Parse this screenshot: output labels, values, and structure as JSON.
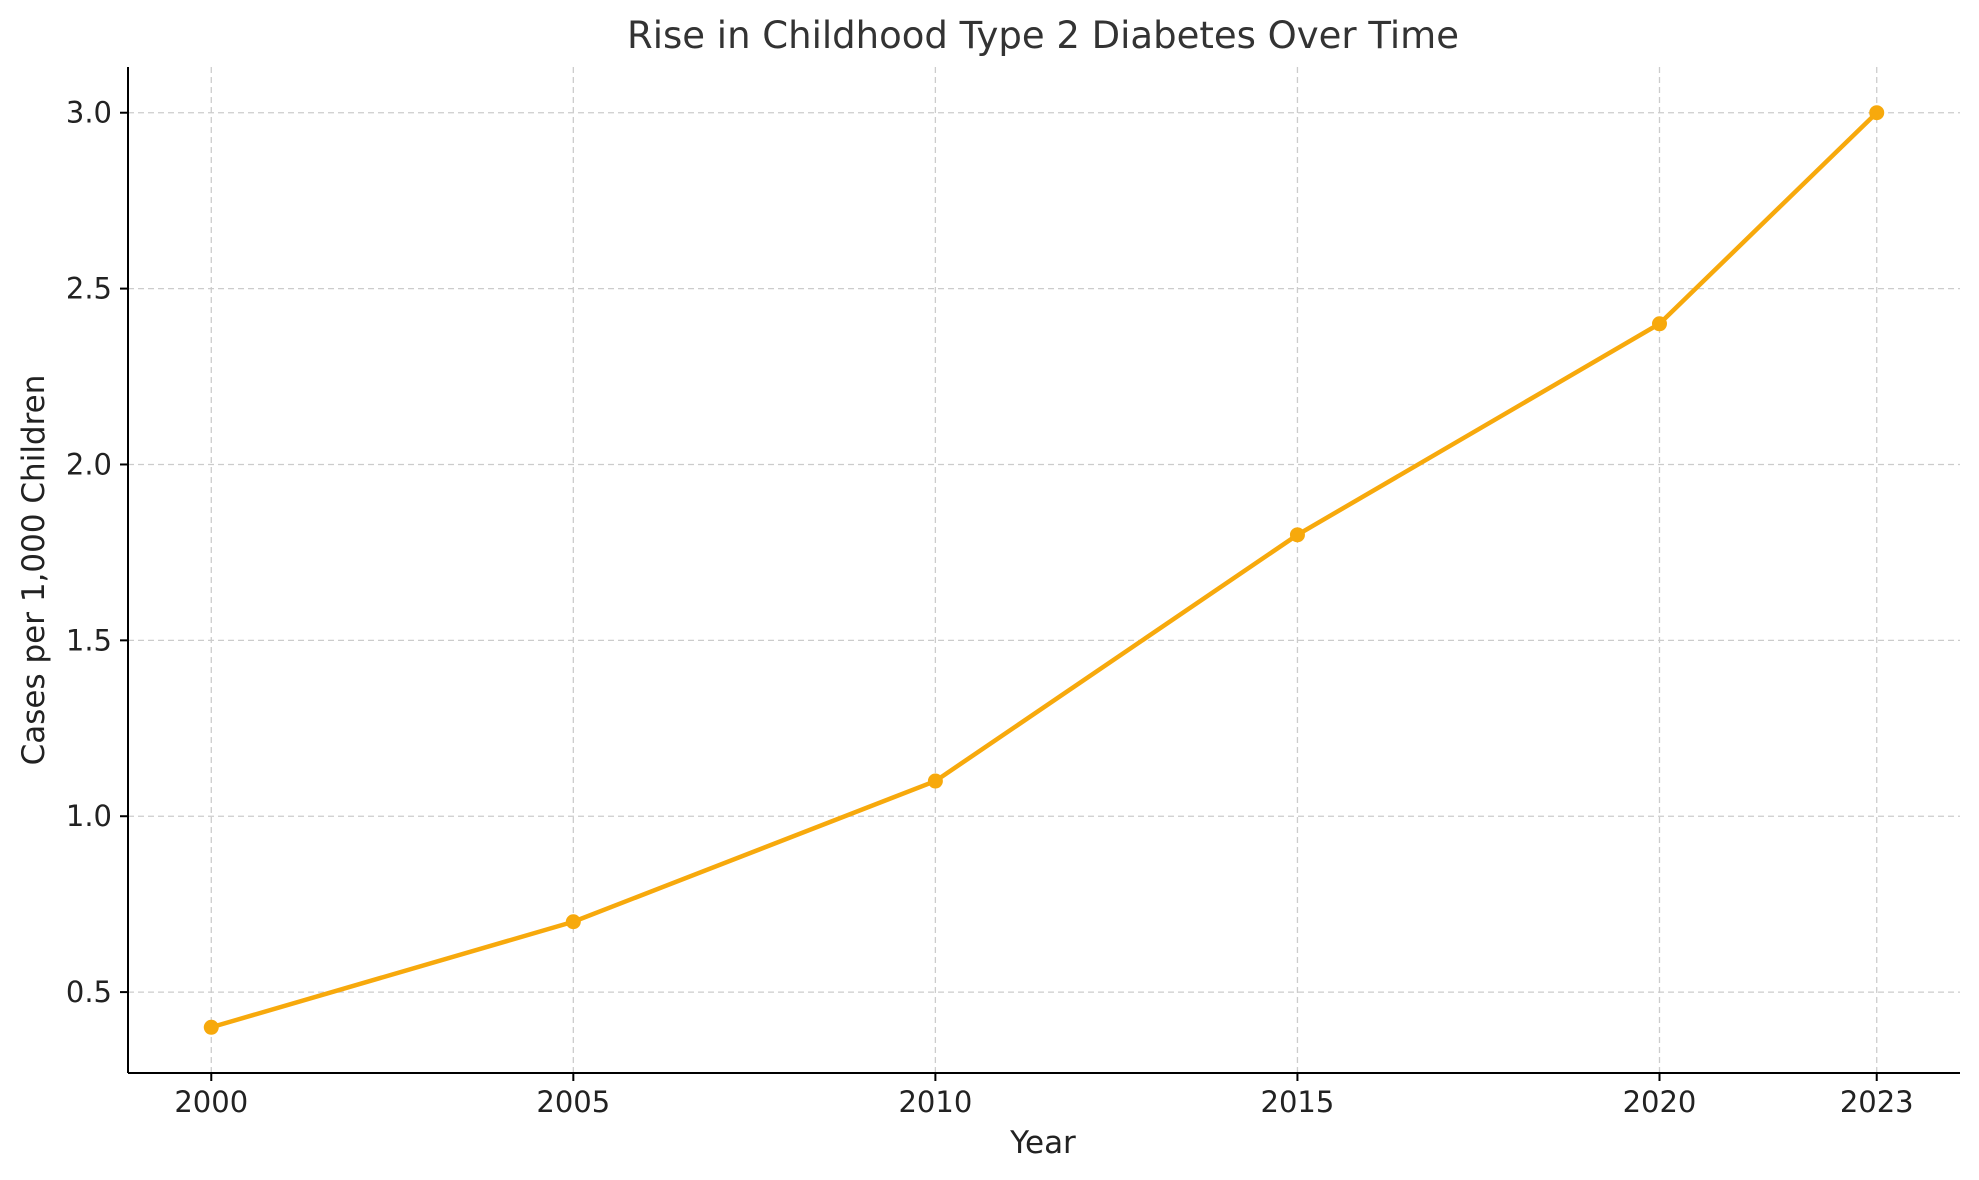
{
  "chart_data": {
    "type": "line",
    "title": "Rise in Childhood Type 2 Diabetes Over Time",
    "xlabel": "Year",
    "ylabel": "Cases per 1,000 Children",
    "x": [
      2000,
      2005,
      2010,
      2015,
      2020,
      2023
    ],
    "series": [
      {
        "values": [
          0.4,
          0.7,
          1.1,
          1.8,
          2.4,
          3.0
        ],
        "color": "#f7a90c",
        "marker": "circle"
      }
    ],
    "xticks": [
      2000,
      2005,
      2010,
      2015,
      2020,
      2023
    ],
    "xtick_labels": [
      "2000",
      "2005",
      "2010",
      "2015",
      "2020",
      "2023"
    ],
    "yticks": [
      0.5,
      1.0,
      1.5,
      2.0,
      2.5,
      3.0
    ],
    "ytick_labels": [
      "0.5",
      "1.0",
      "1.5",
      "2.0",
      "2.5",
      "3.0"
    ],
    "xlim": [
      1998.85,
      2024.15
    ],
    "ylim": [
      0.27,
      3.13
    ],
    "grid": true,
    "grid_style": "dashed",
    "grid_color": "#cccccc",
    "legend": "none"
  }
}
